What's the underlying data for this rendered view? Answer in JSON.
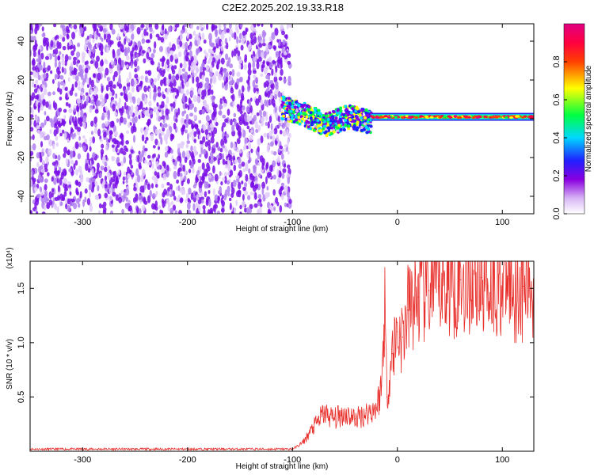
{
  "chart_data": [
    {
      "type": "heatmap",
      "title": "C2E2.2025.202.19.33.R18",
      "xlabel": "Height of straight line (km)",
      "ylabel": "Frequency (Hz)",
      "xlim": [
        -350,
        130
      ],
      "ylim": [
        -49,
        49
      ],
      "x_ticks": [
        "-300",
        "-200",
        "-100",
        "0",
        "100"
      ],
      "y_ticks": [
        "40",
        "20",
        "0",
        "-20",
        "-40"
      ],
      "colorbar": {
        "label": "Normalized spectral amplitude",
        "range": [
          0,
          1
        ],
        "ticks": [
          "0.0",
          "0.2",
          "0.4",
          "0.6",
          "0.8"
        ],
        "colors": [
          "#ffffff",
          "#d9b8f5",
          "#8a00e0",
          "#2020ff",
          "#00d8ff",
          "#00ff40",
          "#ffff00",
          "#ff4000",
          "#ff0040",
          "#e00080"
        ]
      },
      "description_regions": [
        {
          "x_range": [
            -350,
            -110
          ],
          "y_range": [
            -49,
            49
          ],
          "pattern": "broadband noise",
          "amplitude": 0.15
        },
        {
          "x_range": [
            -110,
            -25
          ],
          "center_hz": [
            6,
            2,
            -3,
            1,
            -2
          ],
          "amplitude": 0.4
        },
        {
          "x_range": [
            -25,
            130
          ],
          "center_hz": 1,
          "amplitude": 0.85
        }
      ],
      "grid": false
    },
    {
      "type": "line",
      "title": "",
      "xlabel": "Height of straight line (km)",
      "ylabel": "SNR (10 * v/v)",
      "y_scale_note": "(x10⁴)",
      "xlim": [
        -350,
        130
      ],
      "ylim": [
        0,
        1.75
      ],
      "x_ticks": [
        "-300",
        "-200",
        "-100",
        "0",
        "100"
      ],
      "y_ticks": [
        "0.5",
        "1.0",
        "1.5"
      ],
      "series": [
        {
          "color": "#e8302c",
          "x": [
            -350,
            -300,
            -250,
            -200,
            -150,
            -100,
            -90,
            -80,
            -70,
            -60,
            -50,
            -40,
            -30,
            -20,
            -15,
            -12,
            -10,
            -5,
            0,
            5,
            10,
            20,
            30,
            40,
            60,
            80,
            100,
            120,
            130
          ],
          "y": [
            0.02,
            0.02,
            0.02,
            0.02,
            0.02,
            0.02,
            0.08,
            0.22,
            0.35,
            0.3,
            0.35,
            0.3,
            0.35,
            0.4,
            0.6,
            1.4,
            0.5,
            0.9,
            1.1,
            1.05,
            1.3,
            1.42,
            1.48,
            1.52,
            1.58,
            1.6,
            1.56,
            1.52,
            1.48
          ]
        }
      ],
      "grid": false
    }
  ]
}
